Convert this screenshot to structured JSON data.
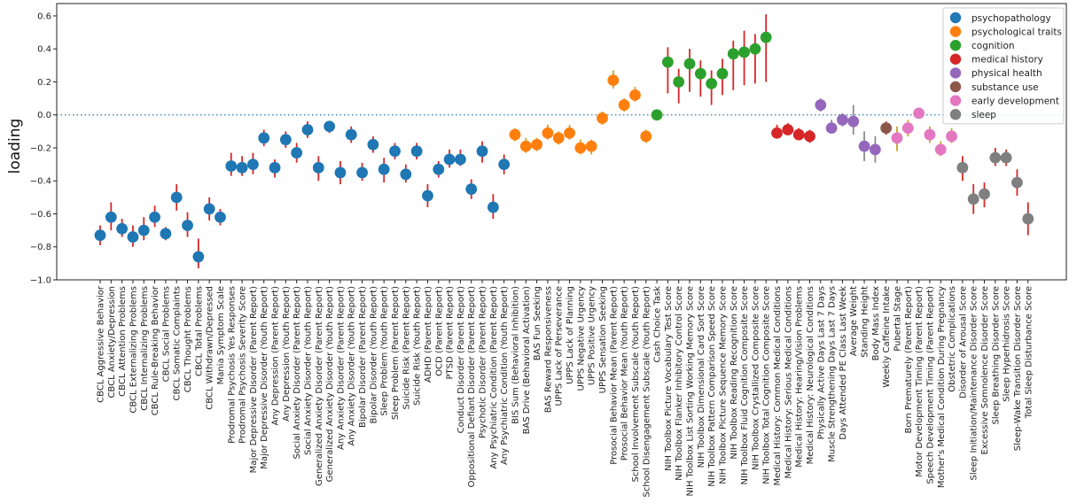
{
  "chart_data": {
    "type": "scatter",
    "ylabel": "loading",
    "ylim": [
      -1.0,
      0.6
    ],
    "yticks": [
      -1.0,
      -0.8,
      -0.6,
      -0.4,
      -0.2,
      0.0,
      0.2,
      0.4,
      0.6
    ],
    "ytick_labels": [
      "−1.0",
      "−0.8",
      "−0.6",
      "−0.4",
      "−0.2",
      "0.0",
      "0.2",
      "0.4",
      "0.6"
    ],
    "reference_line": 0.0,
    "legend_position": "top-right",
    "groups": [
      {
        "name": "psychopathology",
        "color": "#1f77b4"
      },
      {
        "name": "psychological traits",
        "color": "#ff7f0e"
      },
      {
        "name": "cognition",
        "color": "#2ca02c"
      },
      {
        "name": "medical history",
        "color": "#d62728"
      },
      {
        "name": "physical health",
        "color": "#9467bd"
      },
      {
        "name": "substance use",
        "color": "#8c564b"
      },
      {
        "name": "early development",
        "color": "#e377c2"
      },
      {
        "name": "sleep",
        "color": "#7f7f7f"
      }
    ],
    "points": [
      {
        "label": "CBCL Aggressive Behavior",
        "group": 0,
        "value": -0.73,
        "low": -0.79,
        "high": -0.67
      },
      {
        "label": "CBCL Anxiety/Depression",
        "group": 0,
        "value": -0.62,
        "low": -0.7,
        "high": -0.53
      },
      {
        "label": "CBCL Attention Problems",
        "group": 0,
        "value": -0.69,
        "low": -0.74,
        "high": -0.63
      },
      {
        "label": "CBCL Externalizing Problems",
        "group": 0,
        "value": -0.74,
        "low": -0.8,
        "high": -0.67
      },
      {
        "label": "CBCL Internalizing Problems",
        "group": 0,
        "value": -0.7,
        "low": -0.76,
        "high": -0.62
      },
      {
        "label": "CBCL Rule-Breaking Behavior",
        "group": 0,
        "value": -0.62,
        "low": -0.68,
        "high": -0.55
      },
      {
        "label": "CBCL Social Problems",
        "group": 0,
        "value": -0.72,
        "low": -0.76,
        "high": -0.68
      },
      {
        "label": "CBCL Somatic Complaints",
        "group": 0,
        "value": -0.5,
        "low": -0.58,
        "high": -0.42
      },
      {
        "label": "CBCL Thought Problems",
        "group": 0,
        "value": -0.67,
        "low": -0.74,
        "high": -0.59
      },
      {
        "label": "CBCL Total Problems",
        "group": 0,
        "value": -0.86,
        "low": -0.93,
        "high": -0.75
      },
      {
        "label": "CBCL Withdrawn/Depressed",
        "group": 0,
        "value": -0.57,
        "low": -0.64,
        "high": -0.5
      },
      {
        "label": "Mania Symptom Scale",
        "group": 0,
        "value": -0.62,
        "low": -0.67,
        "high": -0.57
      },
      {
        "label": "Prodromal Psychosis Yes Responses",
        "group": 0,
        "value": -0.31,
        "low": -0.37,
        "high": -0.23
      },
      {
        "label": "Prodromal Psychosis Severity Score",
        "group": 0,
        "value": -0.32,
        "low": -0.37,
        "high": -0.25
      },
      {
        "label": "Major Depressive Disorder (Parent Report)",
        "group": 0,
        "value": -0.3,
        "low": -0.36,
        "high": -0.23
      },
      {
        "label": "Major Depressive Disorder (Youth Report)",
        "group": 0,
        "value": -0.14,
        "low": -0.19,
        "high": -0.09
      },
      {
        "label": "Any Depression (Parent Report)",
        "group": 0,
        "value": -0.32,
        "low": -0.38,
        "high": -0.27
      },
      {
        "label": "Any Depression (Youth Report)",
        "group": 0,
        "value": -0.15,
        "low": -0.2,
        "high": -0.1
      },
      {
        "label": "Social Anxiety Disorder (Parent Report)",
        "group": 0,
        "value": -0.23,
        "low": -0.29,
        "high": -0.17
      },
      {
        "label": "Social Anxiety Disorder (Youth Report)",
        "group": 0,
        "value": -0.09,
        "low": -0.14,
        "high": -0.04
      },
      {
        "label": "Generalized Anxiety Disorder (Parent Report)",
        "group": 0,
        "value": -0.32,
        "low": -0.4,
        "high": -0.25
      },
      {
        "label": "Generalized Anxiety Disorder (Youth Report)",
        "group": 0,
        "value": -0.07,
        "low": -0.11,
        "high": -0.04
      },
      {
        "label": "Any Anxiety Disorder (Parent Report)",
        "group": 0,
        "value": -0.35,
        "low": -0.42,
        "high": -0.28
      },
      {
        "label": "Any Anxiety Disorder (Youth Report)",
        "group": 0,
        "value": -0.12,
        "low": -0.17,
        "high": -0.07
      },
      {
        "label": "Bipolar Disorder (Parent Report)",
        "group": 0,
        "value": -0.35,
        "low": -0.4,
        "high": -0.29
      },
      {
        "label": "Bipolar Disorder (Youth Report)",
        "group": 0,
        "value": -0.18,
        "low": -0.23,
        "high": -0.13
      },
      {
        "label": "Sleep Problem (Youth Report)",
        "group": 0,
        "value": -0.33,
        "low": -0.41,
        "high": -0.26
      },
      {
        "label": "Sleep Problem (Parent Report)",
        "group": 0,
        "value": -0.22,
        "low": -0.27,
        "high": -0.17
      },
      {
        "label": "Suicide Risk (Parent Report)",
        "group": 0,
        "value": -0.36,
        "low": -0.41,
        "high": -0.3
      },
      {
        "label": "Suicide Risk (Youth Report)",
        "group": 0,
        "value": -0.22,
        "low": -0.27,
        "high": -0.17
      },
      {
        "label": "ADHD (Parent Report)",
        "group": 0,
        "value": -0.49,
        "low": -0.56,
        "high": -0.42
      },
      {
        "label": "OCD (Parent Report)",
        "group": 0,
        "value": -0.33,
        "low": -0.38,
        "high": -0.28
      },
      {
        "label": "PTSD (Parent Report)",
        "group": 0,
        "value": -0.27,
        "low": -0.32,
        "high": -0.21
      },
      {
        "label": "Conduct Disorder (Parent Report)",
        "group": 0,
        "value": -0.27,
        "low": -0.31,
        "high": -0.21
      },
      {
        "label": "Oppositional Defiant Disorder (Parent Report)",
        "group": 0,
        "value": -0.45,
        "low": -0.51,
        "high": -0.39
      },
      {
        "label": "Psychotic Disorder (Parent Report)",
        "group": 0,
        "value": -0.22,
        "low": -0.29,
        "high": -0.16
      },
      {
        "label": "Any Psychiatric Condition (Parent Report)",
        "group": 0,
        "value": -0.56,
        "low": -0.63,
        "high": -0.48
      },
      {
        "label": "Any Psychiatric Condition (Youth Report)",
        "group": 0,
        "value": -0.3,
        "low": -0.36,
        "high": -0.24
      },
      {
        "label": "BIS Sum (Behavioral Inhibition)",
        "group": 1,
        "value": -0.12,
        "low": -0.16,
        "high": -0.08
      },
      {
        "label": "BAS Drive (Behavioral Activation)",
        "group": 1,
        "value": -0.19,
        "low": -0.23,
        "high": -0.14
      },
      {
        "label": "BAS Fun Seeking",
        "group": 1,
        "value": -0.18,
        "low": -0.22,
        "high": -0.14
      },
      {
        "label": "BAS Reward Responsiveness",
        "group": 1,
        "value": -0.11,
        "low": -0.15,
        "high": -0.06
      },
      {
        "label": "UPPS Lack of Perseverance",
        "group": 1,
        "value": -0.14,
        "low": -0.18,
        "high": -0.1
      },
      {
        "label": "UPPS Lack of Planning",
        "group": 1,
        "value": -0.11,
        "low": -0.15,
        "high": -0.06
      },
      {
        "label": "UPPS Negative Urgency",
        "group": 1,
        "value": -0.2,
        "low": -0.24,
        "high": -0.15
      },
      {
        "label": "UPPS Positive Urgency",
        "group": 1,
        "value": -0.19,
        "low": -0.24,
        "high": -0.15
      },
      {
        "label": "UPPS Sensation Seeking",
        "group": 1,
        "value": -0.02,
        "low": -0.06,
        "high": 0.02
      },
      {
        "label": "Prosocial Behavior Mean (Parent Report)",
        "group": 1,
        "value": 0.21,
        "low": 0.16,
        "high": 0.27
      },
      {
        "label": "Prosocial Behavior Mean (Youth Report)",
        "group": 1,
        "value": 0.06,
        "low": 0.02,
        "high": 0.1
      },
      {
        "label": "School Involvement Subscale (Youth Report)",
        "group": 1,
        "value": 0.12,
        "low": 0.08,
        "high": 0.17
      },
      {
        "label": "School Disengagement Subscale (Youth Report)",
        "group": 1,
        "value": -0.13,
        "low": -0.17,
        "high": -0.09
      },
      {
        "label": "Cash Choice Task",
        "group": 2,
        "value": 0.0,
        "low": -0.03,
        "high": 0.03
      },
      {
        "label": "NIH Toolbox Picture Vocabulary Test Score",
        "group": 2,
        "value": 0.32,
        "low": 0.13,
        "high": 0.41
      },
      {
        "label": "NIH Toolbox Flanker Inhibitory Control Score",
        "group": 2,
        "value": 0.2,
        "low": 0.07,
        "high": 0.28
      },
      {
        "label": "NIH Toolbox List Sorting Working Memory Score",
        "group": 2,
        "value": 0.31,
        "low": 0.14,
        "high": 0.4
      },
      {
        "label": "NIH Toolbox Dimensional Card Sort Score",
        "group": 2,
        "value": 0.25,
        "low": 0.11,
        "high": 0.33
      },
      {
        "label": "NIH Toolbox Pattern Comparison Speed Score",
        "group": 2,
        "value": 0.19,
        "low": 0.06,
        "high": 0.27
      },
      {
        "label": "NIH Toolbox Picture Sequence Memory Score",
        "group": 2,
        "value": 0.25,
        "low": 0.12,
        "high": 0.34
      },
      {
        "label": "NIH Toolbox Reading Recognition Score",
        "group": 2,
        "value": 0.37,
        "low": 0.15,
        "high": 0.45
      },
      {
        "label": "NIH Toolbox Fluid Cognition Composite Score",
        "group": 2,
        "value": 0.38,
        "low": 0.18,
        "high": 0.51
      },
      {
        "label": "NIH Toolbox Crystallized Composite Score",
        "group": 2,
        "value": 0.4,
        "low": 0.19,
        "high": 0.49
      },
      {
        "label": "NIH Toolbox Total Cognition Composite Score",
        "group": 2,
        "value": 0.47,
        "low": 0.2,
        "high": 0.61
      },
      {
        "label": "Medical History: Common Medical Conditions",
        "group": 3,
        "value": -0.11,
        "low": -0.14,
        "high": -0.06
      },
      {
        "label": "Medical History: Serious Medical Conditions",
        "group": 3,
        "value": -0.09,
        "low": -0.12,
        "high": -0.05
      },
      {
        "label": "Medical History: Hearing/Vision Problems",
        "group": 3,
        "value": -0.12,
        "low": -0.15,
        "high": -0.08
      },
      {
        "label": "Medical History: Neurological Conditions",
        "group": 3,
        "value": -0.13,
        "low": -0.17,
        "high": -0.09
      },
      {
        "label": "Physically Active Days Last 7 Days",
        "group": 4,
        "value": 0.06,
        "low": 0.02,
        "high": 0.1
      },
      {
        "label": "Muscle Strengthening Days Last 7 Days",
        "group": 4,
        "value": -0.08,
        "low": -0.11,
        "high": -0.03
      },
      {
        "label": "Days Attended PE Class Last Week",
        "group": 4,
        "value": -0.03,
        "low": -0.07,
        "high": 0.01
      },
      {
        "label": "Average Weight",
        "group": 4,
        "value": -0.04,
        "low": -0.12,
        "high": 0.06
      },
      {
        "label": "Standing Height",
        "group": 4,
        "value": -0.19,
        "low": -0.28,
        "high": -0.1
      },
      {
        "label": "Body Mass Index",
        "group": 4,
        "value": -0.21,
        "low": -0.29,
        "high": -0.13
      },
      {
        "label": "Weekly Caffeine Intake",
        "group": 5,
        "value": -0.08,
        "low": -0.12,
        "high": -0.04
      },
      {
        "label": "Pubertal Stage",
        "group": 6,
        "value": -0.14,
        "low": -0.22,
        "high": -0.07
      },
      {
        "label": "Born Prematurely (Parent Report)",
        "group": 6,
        "value": -0.08,
        "low": -0.13,
        "high": -0.03
      },
      {
        "label": "Motor Development Timing (Parent Report)",
        "group": 6,
        "value": 0.01,
        "low": -0.02,
        "high": 0.04
      },
      {
        "label": "Speech Development Timing (Parent Report)",
        "group": 6,
        "value": -0.12,
        "low": -0.17,
        "high": -0.07
      },
      {
        "label": "Mother's Medical Condition During Pregnancy",
        "group": 6,
        "value": -0.21,
        "low": -0.25,
        "high": -0.16
      },
      {
        "label": "Obstetric Complications",
        "group": 6,
        "value": -0.13,
        "low": -0.17,
        "high": -0.08
      },
      {
        "label": "Disorder of Arousal Score",
        "group": 7,
        "value": -0.32,
        "low": -0.4,
        "high": -0.25
      },
      {
        "label": "Sleep Initiation/Maintenance Disorder Score",
        "group": 7,
        "value": -0.51,
        "low": -0.6,
        "high": -0.42
      },
      {
        "label": "Excessive Somnolence Disorder Score",
        "group": 7,
        "value": -0.48,
        "low": -0.56,
        "high": -0.41
      },
      {
        "label": "Sleep Breathing Disorder Score",
        "group": 7,
        "value": -0.26,
        "low": -0.31,
        "high": -0.2
      },
      {
        "label": "Sleep Hyperhidrosis Score",
        "group": 7,
        "value": -0.26,
        "low": -0.31,
        "high": -0.21
      },
      {
        "label": "Sleep-Wake Transition Disorder Score",
        "group": 7,
        "value": -0.41,
        "low": -0.49,
        "high": -0.33
      },
      {
        "label": "Total Sleep Disturbance Score",
        "group": 7,
        "value": -0.63,
        "low": -0.73,
        "high": -0.53
      }
    ]
  }
}
